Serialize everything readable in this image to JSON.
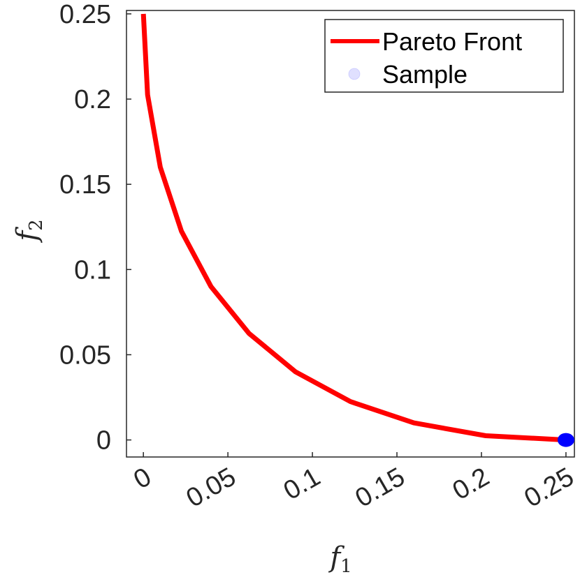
{
  "chart_data": {
    "type": "line",
    "title": "",
    "xlabel": "f1",
    "ylabel": "f2",
    "xlim": [
      -0.01,
      0.255
    ],
    "ylim": [
      -0.01,
      0.252
    ],
    "xticks": [
      0,
      0.05,
      0.1,
      0.15,
      0.2,
      0.25
    ],
    "xtick_labels": [
      "0",
      "0.05",
      "0.1",
      "0.15",
      "0.2",
      "0.25"
    ],
    "yticks": [
      0,
      0.05,
      0.1,
      0.15,
      0.2,
      0.25
    ],
    "ytick_labels": [
      "0",
      "0.05",
      "0.1",
      "0.15",
      "0.2",
      "0.25"
    ],
    "grid": false,
    "legend_position": "top-right",
    "series": [
      {
        "name": "Pareto Front",
        "kind": "line",
        "color": "#ff0000",
        "x": [
          0,
          0.0025,
          0.01,
          0.0225,
          0.04,
          0.0625,
          0.09,
          0.1225,
          0.16,
          0.2025,
          0.25
        ],
        "y": [
          0.25,
          0.2025,
          0.16,
          0.1225,
          0.09,
          0.0625,
          0.04,
          0.0225,
          0.01,
          0.0025,
          0
        ]
      },
      {
        "name": "Sample",
        "kind": "scatter",
        "color": "#0000ff",
        "x": [
          0.25
        ],
        "y": [
          0
        ]
      }
    ]
  }
}
